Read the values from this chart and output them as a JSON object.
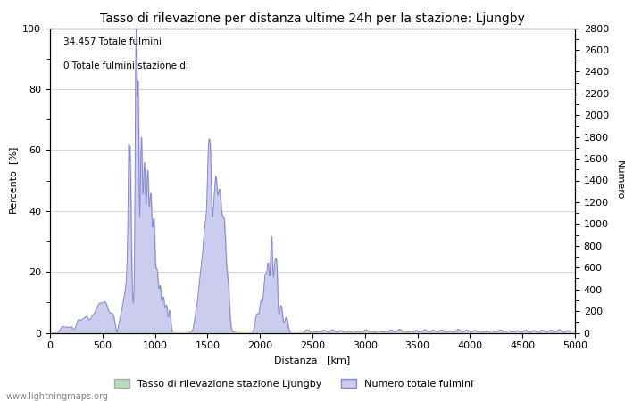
{
  "title": "Tasso di rilevazione per distanza ultime 24h per la stazione: Ljungby",
  "xlabel": "Distanza   [km]",
  "ylabel_left": "Percento  [%]",
  "ylabel_right": "Numero",
  "annotation_line1": "34.457 Totale fulmini",
  "annotation_line2": "0 Totale fulmini stazione di",
  "watermark": "www.lightningmaps.org",
  "legend_green": "Tasso di rilevazione stazione Ljungby",
  "legend_blue": "Numero totale fulmini",
  "xlim": [
    0,
    5000
  ],
  "ylim_left": [
    0,
    100
  ],
  "ylim_right": [
    0,
    2800
  ],
  "yticks_left": [
    0,
    20,
    40,
    60,
    80,
    100
  ],
  "yticks_right": [
    0,
    200,
    400,
    600,
    800,
    1000,
    1200,
    1400,
    1600,
    1800,
    2000,
    2200,
    2400,
    2600,
    2800
  ],
  "xticks": [
    0,
    500,
    1000,
    1500,
    2000,
    2500,
    3000,
    3500,
    4000,
    4500,
    5000
  ],
  "blue_color": "#8888cc",
  "blue_fill": "#ccccee",
  "green_fill": "#bbddbb",
  "background_color": "#ffffff",
  "grid_color": "#cccccc",
  "title_fontsize": 10,
  "axis_fontsize": 8,
  "tick_fontsize": 8
}
